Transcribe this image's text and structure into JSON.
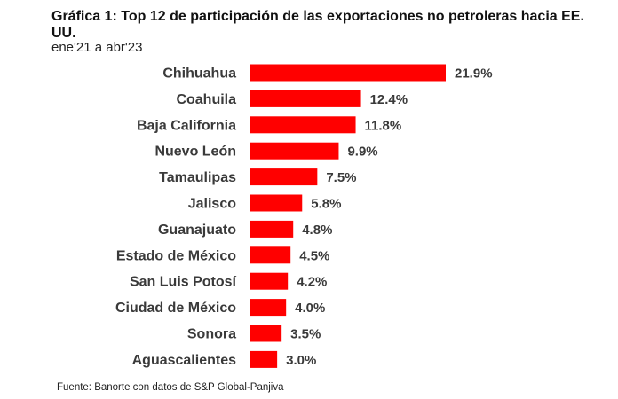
{
  "chart_data": {
    "type": "bar",
    "orientation": "horizontal",
    "title": "Gráfica 1: Top 12 de participación de las exportaciones no petroleras hacia EE. UU.",
    "subtitle": "ene'21 a abr'23",
    "categories": [
      "Chihuahua",
      "Coahuila",
      "Baja California",
      "Nuevo León",
      "Tamaulipas",
      "Jalisco",
      "Guanajuato",
      "Estado de México",
      "San Luis Potosí",
      "Ciudad de México",
      "Sonora",
      "Aguascalientes"
    ],
    "values": [
      21.9,
      12.4,
      11.8,
      9.9,
      7.5,
      5.8,
      4.8,
      4.5,
      4.2,
      4.0,
      3.5,
      3.0
    ],
    "value_labels": [
      "21.9%",
      "12.4%",
      "11.8%",
      "9.9%",
      "7.5%",
      "5.8%",
      "4.8%",
      "4.5%",
      "4.2%",
      "4.0%",
      "3.5%",
      "3.0%"
    ],
    "bar_color": "#ff0000",
    "grid": false,
    "legend": "none",
    "source": "Fuente: Banorte con datos de S&P Global-Panjiva"
  }
}
